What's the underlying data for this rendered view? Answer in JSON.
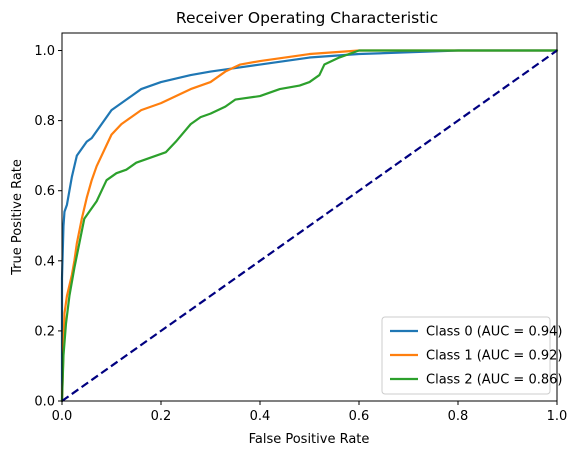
{
  "chart_data": {
    "type": "line",
    "title": "Receiver Operating Characteristic",
    "xlabel": "False Positive Rate",
    "ylabel": "True Positive Rate",
    "xlim": [
      0.0,
      1.0
    ],
    "ylim": [
      0.0,
      1.05
    ],
    "xticks": [
      "0.0",
      "0.2",
      "0.4",
      "0.6",
      "0.8",
      "1.0"
    ],
    "yticks": [
      "0.0",
      "0.2",
      "0.4",
      "0.6",
      "0.8",
      "1.0"
    ],
    "grid": false,
    "legend_position": "lower-right",
    "series": [
      {
        "name": "Class 0 (AUC = 0.94)",
        "color": "#1f77b4",
        "points": [
          [
            0,
            0
          ],
          [
            0,
            0.35
          ],
          [
            0.003,
            0.5
          ],
          [
            0.005,
            0.54
          ],
          [
            0.01,
            0.56
          ],
          [
            0.015,
            0.6
          ],
          [
            0.02,
            0.64
          ],
          [
            0.025,
            0.67
          ],
          [
            0.03,
            0.7
          ],
          [
            0.04,
            0.72
          ],
          [
            0.05,
            0.74
          ],
          [
            0.06,
            0.75
          ],
          [
            0.07,
            0.77
          ],
          [
            0.08,
            0.79
          ],
          [
            0.09,
            0.81
          ],
          [
            0.1,
            0.83
          ],
          [
            0.12,
            0.85
          ],
          [
            0.14,
            0.87
          ],
          [
            0.16,
            0.89
          ],
          [
            0.18,
            0.9
          ],
          [
            0.2,
            0.91
          ],
          [
            0.23,
            0.92
          ],
          [
            0.26,
            0.93
          ],
          [
            0.3,
            0.94
          ],
          [
            0.35,
            0.95
          ],
          [
            0.4,
            0.96
          ],
          [
            0.45,
            0.97
          ],
          [
            0.5,
            0.98
          ],
          [
            0.55,
            0.985
          ],
          [
            0.6,
            0.99
          ],
          [
            0.7,
            0.995
          ],
          [
            0.8,
            1.0
          ],
          [
            1.0,
            1.0
          ]
        ]
      },
      {
        "name": "Class 1 (AUC = 0.92)",
        "color": "#ff7f0e",
        "points": [
          [
            0,
            0
          ],
          [
            0.005,
            0.25
          ],
          [
            0.01,
            0.3
          ],
          [
            0.015,
            0.33
          ],
          [
            0.02,
            0.36
          ],
          [
            0.025,
            0.4
          ],
          [
            0.03,
            0.45
          ],
          [
            0.04,
            0.52
          ],
          [
            0.05,
            0.58
          ],
          [
            0.06,
            0.63
          ],
          [
            0.07,
            0.67
          ],
          [
            0.08,
            0.7
          ],
          [
            0.09,
            0.73
          ],
          [
            0.1,
            0.76
          ],
          [
            0.12,
            0.79
          ],
          [
            0.14,
            0.81
          ],
          [
            0.16,
            0.83
          ],
          [
            0.18,
            0.84
          ],
          [
            0.2,
            0.85
          ],
          [
            0.23,
            0.87
          ],
          [
            0.26,
            0.89
          ],
          [
            0.3,
            0.91
          ],
          [
            0.33,
            0.94
          ],
          [
            0.36,
            0.96
          ],
          [
            0.4,
            0.97
          ],
          [
            0.45,
            0.98
          ],
          [
            0.5,
            0.99
          ],
          [
            0.55,
            0.995
          ],
          [
            0.6,
            1.0
          ],
          [
            1.0,
            1.0
          ]
        ]
      },
      {
        "name": "Class 2 (AUC = 0.86)",
        "color": "#2ca02c",
        "points": [
          [
            0,
            0
          ],
          [
            0.003,
            0.13
          ],
          [
            0.008,
            0.22
          ],
          [
            0.015,
            0.3
          ],
          [
            0.025,
            0.38
          ],
          [
            0.035,
            0.45
          ],
          [
            0.045,
            0.52
          ],
          [
            0.055,
            0.54
          ],
          [
            0.07,
            0.57
          ],
          [
            0.08,
            0.6
          ],
          [
            0.09,
            0.63
          ],
          [
            0.11,
            0.65
          ],
          [
            0.13,
            0.66
          ],
          [
            0.15,
            0.68
          ],
          [
            0.17,
            0.69
          ],
          [
            0.19,
            0.7
          ],
          [
            0.21,
            0.71
          ],
          [
            0.23,
            0.74
          ],
          [
            0.26,
            0.79
          ],
          [
            0.28,
            0.81
          ],
          [
            0.3,
            0.82
          ],
          [
            0.33,
            0.84
          ],
          [
            0.35,
            0.86
          ],
          [
            0.4,
            0.87
          ],
          [
            0.44,
            0.89
          ],
          [
            0.48,
            0.9
          ],
          [
            0.5,
            0.91
          ],
          [
            0.52,
            0.93
          ],
          [
            0.53,
            0.96
          ],
          [
            0.56,
            0.98
          ],
          [
            0.6,
            1.0
          ],
          [
            1.0,
            1.0
          ]
        ]
      },
      {
        "name": "",
        "color": "#000080",
        "dashed": true,
        "points": [
          [
            0,
            0
          ],
          [
            1,
            1
          ]
        ]
      }
    ]
  }
}
